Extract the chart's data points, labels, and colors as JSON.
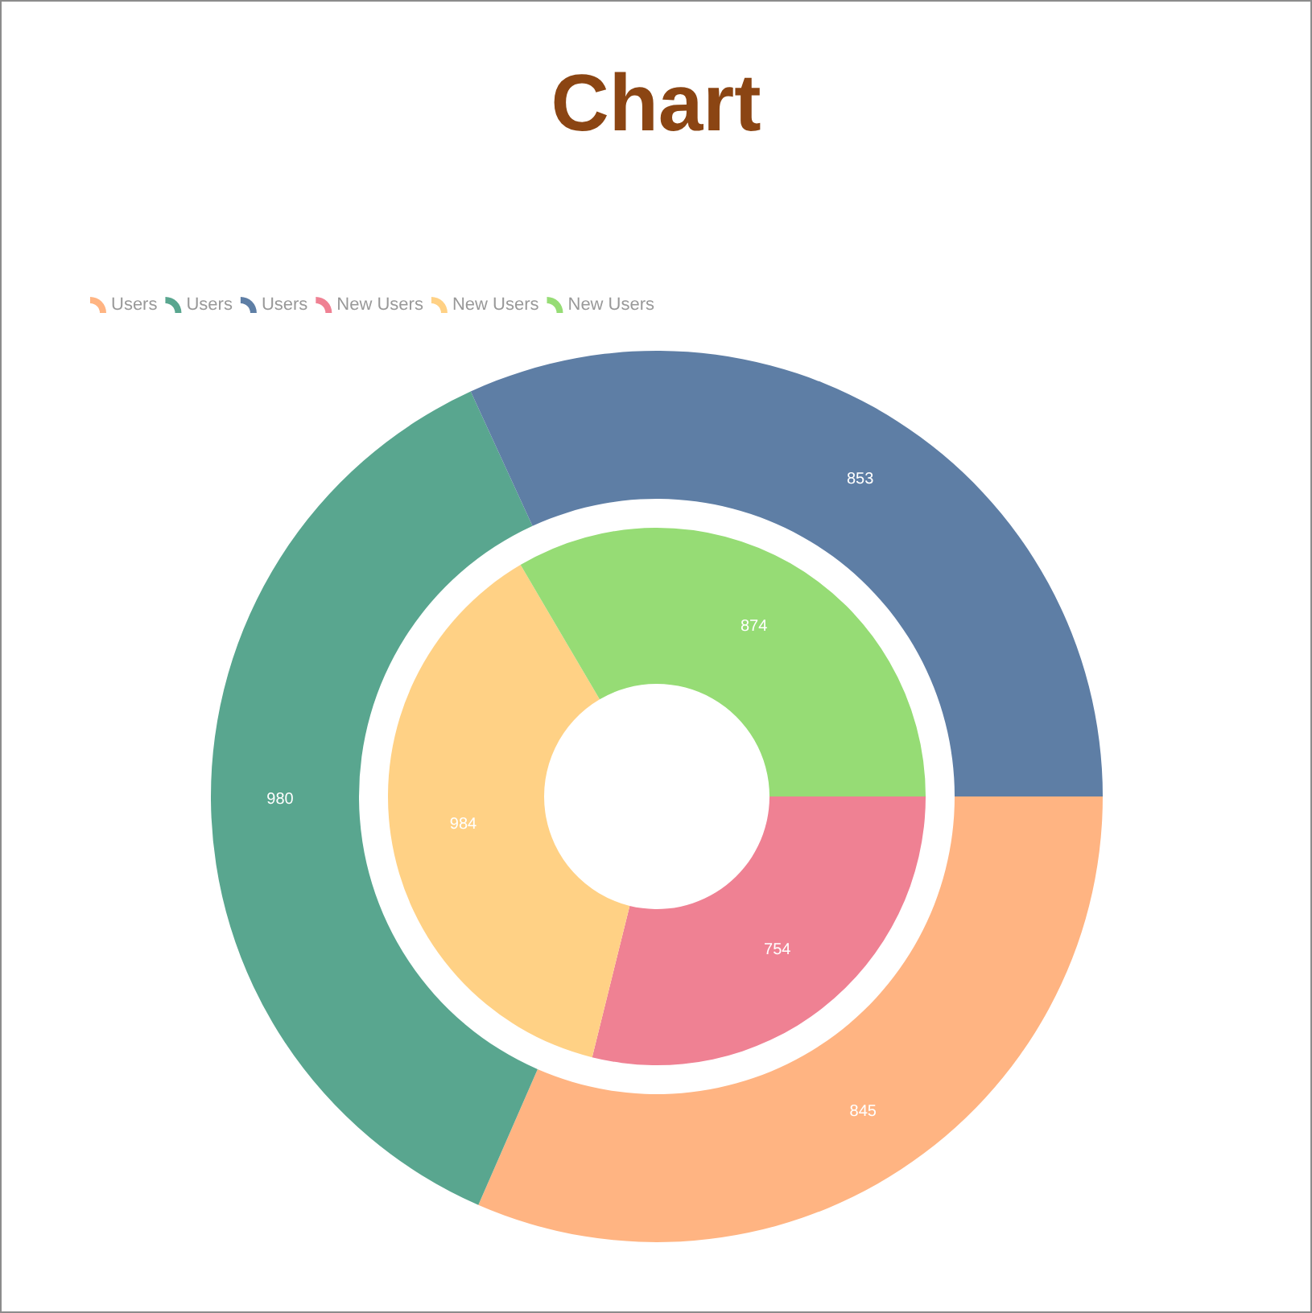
{
  "chart_data": {
    "type": "donut",
    "title": "Chart",
    "series": [
      {
        "name": "Users",
        "values": [
          845,
          980,
          853
        ],
        "colors": [
          "#ffb482",
          "#59a68f",
          "#5e7ea5"
        ]
      },
      {
        "name": "New Users",
        "values": [
          754,
          984,
          874
        ],
        "colors": [
          "#ef8193",
          "#ffd185",
          "#96dc75"
        ]
      }
    ],
    "data_labels": true,
    "legend": "top left"
  }
}
